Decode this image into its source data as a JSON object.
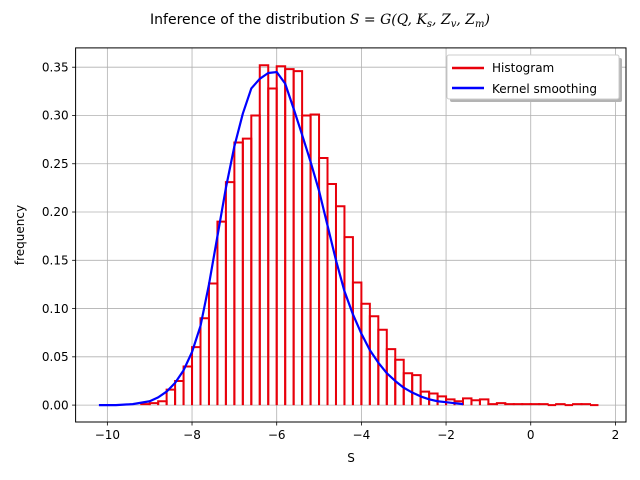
{
  "chart_data": {
    "type": "bar",
    "title_prefix": "Inference of the distribution ",
    "title_math": "S = G(Q, K",
    "title": "Inference of the distribution S = G(Q, K_s, Z_v, Z_m)",
    "xlabel": "S",
    "ylabel": "frequency",
    "xlim": [
      -10.75,
      2.25
    ],
    "ylim": [
      -0.0175,
      0.37
    ],
    "xticks": [
      -10,
      -8,
      -6,
      -4,
      -2,
      0,
      2
    ],
    "xtick_labels": [
      "−10",
      "−8",
      "−6",
      "−4",
      "−2",
      "0",
      "2"
    ],
    "yticks": [
      0.0,
      0.05,
      0.1,
      0.15,
      0.2,
      0.25,
      0.3,
      0.35
    ],
    "ytick_labels": [
      "0.00",
      "0.05",
      "0.10",
      "0.15",
      "0.20",
      "0.25",
      "0.30",
      "0.35"
    ],
    "grid": true,
    "legend_position": "top-right",
    "series": [
      {
        "name": "Histogram",
        "kind": "step-histogram",
        "color": "#e8000b",
        "bin_edges": [
          -9.2,
          -9.0,
          -8.8,
          -8.6,
          -8.4,
          -8.2,
          -8.0,
          -7.8,
          -7.6,
          -7.4,
          -7.2,
          -7.0,
          -6.8,
          -6.6,
          -6.4,
          -6.2,
          -6.0,
          -5.8,
          -5.6,
          -5.4,
          -5.2,
          -5.0,
          -4.8,
          -4.6,
          -4.4,
          -4.2,
          -4.0,
          -3.8,
          -3.6,
          -3.4,
          -3.2,
          -3.0,
          -2.8,
          -2.6,
          -2.4,
          -2.2,
          -2.0,
          -1.8,
          -1.6,
          -1.4,
          -1.2,
          -1.0,
          -0.8,
          -0.6,
          -0.4,
          -0.2,
          0.0,
          0.2,
          0.4,
          0.6,
          0.8,
          1.0,
          1.2,
          1.4,
          1.6
        ],
        "values": [
          0.001,
          0.002,
          0.004,
          0.016,
          0.025,
          0.04,
          0.06,
          0.09,
          0.126,
          0.19,
          0.231,
          0.272,
          0.276,
          0.3,
          0.352,
          0.328,
          0.351,
          0.348,
          0.346,
          0.3,
          0.301,
          0.256,
          0.229,
          0.206,
          0.174,
          0.127,
          0.105,
          0.092,
          0.078,
          0.058,
          0.047,
          0.033,
          0.031,
          0.014,
          0.012,
          0.009,
          0.006,
          0.004,
          0.007,
          0.005,
          0.006,
          0.001,
          0.002,
          0.001,
          0.001,
          0.001,
          0.001,
          0.001,
          0.0,
          0.001,
          0.0,
          0.001,
          0.001,
          0.0
        ]
      },
      {
        "name": "Kernel smoothing",
        "kind": "line",
        "color": "#0000ff",
        "x": [
          -10.2,
          -9.8,
          -9.4,
          -9.0,
          -8.8,
          -8.6,
          -8.4,
          -8.2,
          -8.0,
          -7.8,
          -7.6,
          -7.4,
          -7.2,
          -7.0,
          -6.8,
          -6.6,
          -6.4,
          -6.2,
          -6.0,
          -5.8,
          -5.6,
          -5.4,
          -5.2,
          -5.0,
          -4.8,
          -4.6,
          -4.4,
          -4.2,
          -4.0,
          -3.8,
          -3.6,
          -3.4,
          -3.2,
          -3.0,
          -2.8,
          -2.6,
          -2.4,
          -2.2,
          -2.0,
          -1.8,
          -1.6
        ],
        "y": [
          0.0,
          0.0,
          0.001,
          0.004,
          0.008,
          0.014,
          0.023,
          0.036,
          0.055,
          0.082,
          0.125,
          0.175,
          0.225,
          0.268,
          0.302,
          0.328,
          0.338,
          0.344,
          0.345,
          0.333,
          0.307,
          0.28,
          0.252,
          0.222,
          0.186,
          0.15,
          0.118,
          0.094,
          0.074,
          0.057,
          0.044,
          0.033,
          0.025,
          0.018,
          0.013,
          0.009,
          0.006,
          0.004,
          0.003,
          0.002,
          0.001
        ]
      }
    ]
  }
}
